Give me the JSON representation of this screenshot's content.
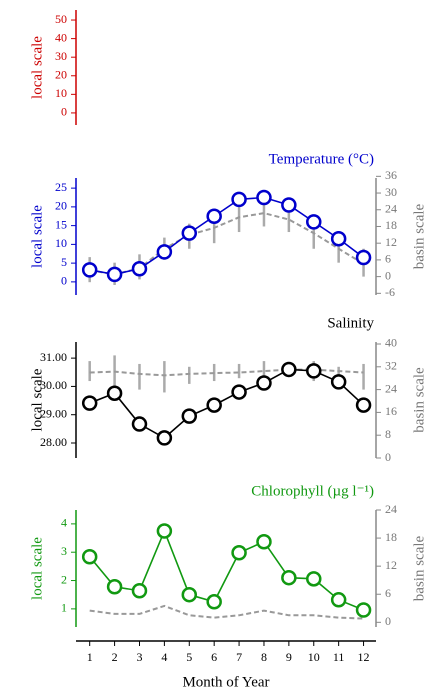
{
  "chart_data": [
    {
      "type": "line",
      "color": "#cc0000",
      "ylabel": "local scale",
      "ylim": [
        -6.5,
        55.4
      ],
      "yticks": [
        0,
        10,
        20,
        30,
        40,
        50
      ],
      "xlim": [
        0.45,
        12.5
      ]
    },
    {
      "type": "line",
      "title": "Temperature (°C)",
      "color": "#0000cc",
      "ylabel": "local scale",
      "ylim": [
        -3.5,
        27.7
      ],
      "yticks": [
        0,
        5,
        10,
        15,
        20,
        25
      ],
      "y2label": "basin scale",
      "y2lim": [
        -6.6,
        35.4
      ],
      "y2ticks": [
        -6,
        0,
        6,
        12,
        18,
        24,
        30,
        36
      ],
      "xlim": [
        0.45,
        12.5
      ],
      "x": [
        1,
        2,
        3,
        4,
        5,
        6,
        7,
        8,
        9,
        10,
        11,
        12
      ],
      "series": [
        {
          "color": "#0000cc",
          "values": [
            3.2,
            2,
            3.5,
            8,
            13,
            17.5,
            22,
            22.5,
            20.5,
            16,
            11.5,
            6.5
          ]
        },
        {
          "axis": "y2",
          "color": "#999999",
          "values": [
            2.3,
            0.8,
            3,
            10,
            15,
            17.5,
            21.3,
            22.8,
            20.5,
            15.6,
            10,
            4.6
          ],
          "low": [
            -2,
            -3,
            -1,
            6,
            10,
            12,
            16,
            18,
            16,
            10,
            5,
            0
          ],
          "high": [
            7,
            5,
            8,
            14,
            19,
            22,
            25,
            26,
            24,
            20,
            15,
            10
          ]
        }
      ]
    },
    {
      "type": "line",
      "title": "Salinity",
      "color": "#000000",
      "ylabel": "local scale",
      "ylim": [
        27.47,
        31.57
      ],
      "yticks": [
        {
          "value": 28,
          "label": "28.00"
        },
        {
          "value": 29,
          "label": "29.00"
        },
        {
          "value": 30,
          "label": "30.00"
        },
        {
          "value": 31,
          "label": "31.00"
        }
      ],
      "y2label": "basin scale",
      "y2lim": [
        0,
        40.7
      ],
      "y2ticks": [
        0,
        8,
        16,
        24,
        32,
        40
      ],
      "xlim": [
        0.45,
        12.5
      ],
      "x": [
        1,
        2,
        3,
        4,
        5,
        6,
        7,
        8,
        9,
        10,
        11,
        12
      ],
      "series": [
        {
          "color": "#000000",
          "values": [
            29.41,
            29.76,
            28.67,
            28.18,
            28.95,
            29.34,
            29.8,
            30.12,
            30.6,
            30.55,
            30.16,
            29.34
          ]
        },
        {
          "axis": "y2",
          "color": "#999999",
          "values": [
            30,
            30.3,
            29.5,
            29,
            29.5,
            29.8,
            30,
            30.5,
            31,
            31,
            30.5,
            30
          ],
          "low": [
            27,
            25,
            24,
            23,
            26,
            27,
            28,
            28,
            29,
            27,
            26,
            24
          ],
          "high": [
            34,
            36,
            33,
            34,
            32,
            33,
            33,
            34,
            33,
            34,
            32,
            33
          ]
        }
      ]
    },
    {
      "type": "line",
      "title": "Chlorophyll (µg l⁻¹)",
      "color": "#119911",
      "ylabel": "local scale",
      "ylim": [
        0.36,
        4.49
      ],
      "yticks": [
        1,
        2,
        3,
        4
      ],
      "y2label": "basin scale",
      "y2lim": [
        -1,
        24
      ],
      "y2ticks": [
        0,
        6,
        12,
        18,
        24
      ],
      "xlim": [
        0.45,
        12.5
      ],
      "x": [
        1,
        2,
        3,
        4,
        5,
        6,
        7,
        8,
        9,
        10,
        11,
        12
      ],
      "xlabel": "Month of Year",
      "xticks": [
        1,
        2,
        3,
        4,
        5,
        6,
        7,
        8,
        9,
        10,
        11,
        12
      ],
      "series": [
        {
          "color": "#119911",
          "values": [
            2.84,
            1.78,
            1.64,
            3.75,
            1.5,
            1.25,
            2.98,
            3.37,
            2.1,
            2.06,
            1.32,
            0.96
          ]
        },
        {
          "axis": "y2",
          "color": "#999999",
          "values": [
            2.5,
            1.8,
            1.8,
            3.5,
            1.5,
            1,
            1.5,
            2.5,
            1.5,
            1.5,
            1,
            0.8
          ]
        }
      ]
    }
  ]
}
